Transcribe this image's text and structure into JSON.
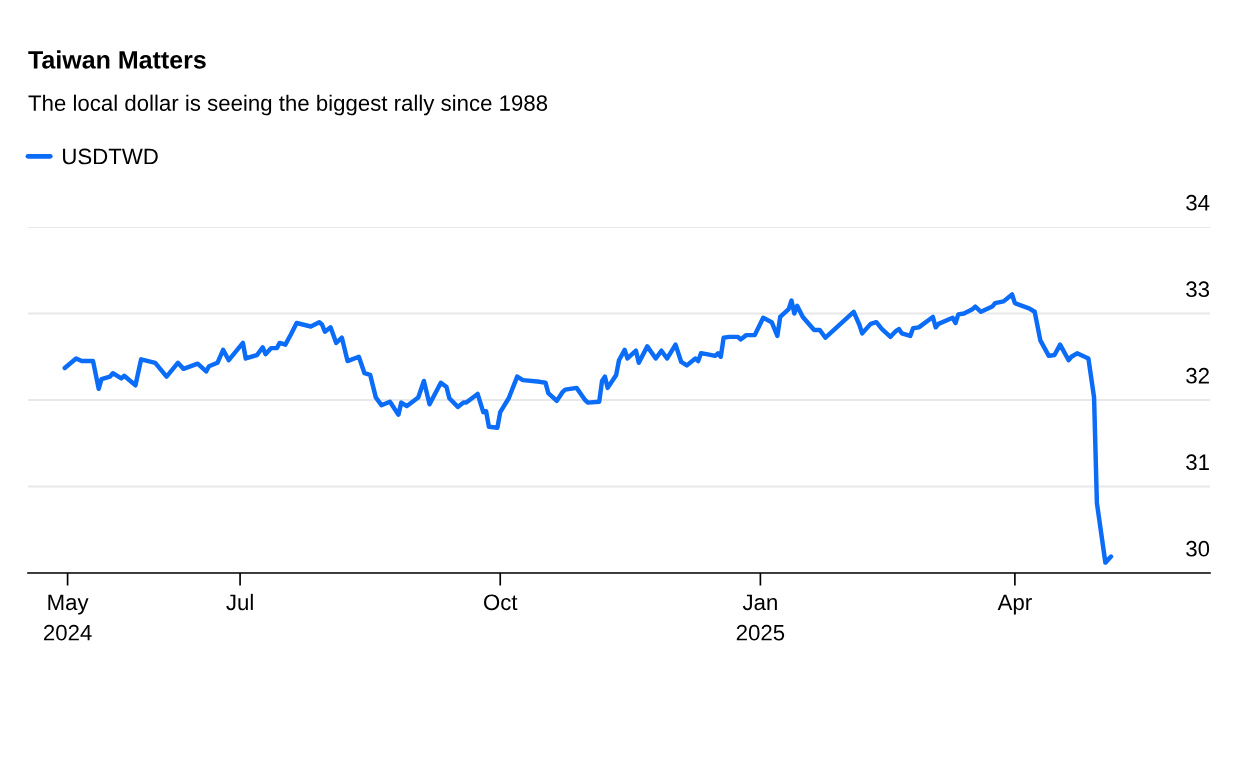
{
  "chart_data": {
    "type": "line",
    "title": "Taiwan Matters",
    "subtitle": "The local dollar is seeing the biggest rally since 1988",
    "x": [
      "2024-04-30",
      "2024-05-04",
      "2024-05-06",
      "2024-05-10",
      "2024-05-12",
      "2024-05-13",
      "2024-05-16",
      "2024-05-17",
      "2024-05-20",
      "2024-05-21",
      "2024-05-25",
      "2024-05-27",
      "2024-06-01",
      "2024-06-05",
      "2024-06-09",
      "2024-06-11",
      "2024-06-16",
      "2024-06-19",
      "2024-06-20",
      "2024-06-23",
      "2024-06-25",
      "2024-06-27",
      "2024-07-02",
      "2024-07-03",
      "2024-07-07",
      "2024-07-09",
      "2024-07-10",
      "2024-07-12",
      "2024-07-14",
      "2024-07-15",
      "2024-07-17",
      "2024-07-19",
      "2024-07-21",
      "2024-07-26",
      "2024-07-29",
      "2024-07-30",
      "2024-07-31",
      "2024-08-02",
      "2024-08-04",
      "2024-08-06",
      "2024-08-08",
      "2024-08-12",
      "2024-08-14",
      "2024-08-16",
      "2024-08-18",
      "2024-08-20",
      "2024-08-23",
      "2024-08-26",
      "2024-08-27",
      "2024-08-29",
      "2024-09-02",
      "2024-09-04",
      "2024-09-06",
      "2024-09-10",
      "2024-09-12",
      "2024-09-13",
      "2024-09-16",
      "2024-09-18",
      "2024-09-19",
      "2024-09-23",
      "2024-09-25",
      "2024-09-26",
      "2024-09-27",
      "2024-09-30",
      "2024-10-01",
      "2024-10-04",
      "2024-10-07",
      "2024-10-09",
      "2024-10-15",
      "2024-10-17",
      "2024-10-18",
      "2024-10-21",
      "2024-10-23",
      "2024-10-24",
      "2024-10-28",
      "2024-10-31",
      "2024-11-01",
      "2024-11-05",
      "2024-11-06",
      "2024-11-07",
      "2024-11-08",
      "2024-11-11",
      "2024-11-12",
      "2024-11-14",
      "2024-11-15",
      "2024-11-18",
      "2024-11-19",
      "2024-11-22",
      "2024-11-25",
      "2024-11-27",
      "2024-11-29",
      "2024-12-02",
      "2024-12-04",
      "2024-12-06",
      "2024-12-09",
      "2024-12-10",
      "2024-12-11",
      "2024-12-13",
      "2024-12-16",
      "2024-12-17",
      "2024-12-18",
      "2024-12-19",
      "2024-12-21",
      "2024-12-24",
      "2024-12-25",
      "2024-12-27",
      "2024-12-30",
      "2025-01-02",
      "2025-01-05",
      "2025-01-07",
      "2025-01-08",
      "2025-01-11",
      "2025-01-12",
      "2025-01-13",
      "2025-01-14",
      "2025-01-16",
      "2025-01-20",
      "2025-01-22",
      "2025-01-24",
      "2025-02-03",
      "2025-02-05",
      "2025-02-06",
      "2025-02-09",
      "2025-02-11",
      "2025-02-13",
      "2025-02-16",
      "2025-02-18",
      "2025-02-19",
      "2025-02-20",
      "2025-02-23",
      "2025-02-24",
      "2025-02-26",
      "2025-03-03",
      "2025-03-04",
      "2025-03-05",
      "2025-03-10",
      "2025-03-11",
      "2025-03-12",
      "2025-03-14",
      "2025-03-17",
      "2025-03-18",
      "2025-03-20",
      "2025-03-24",
      "2025-03-25",
      "2025-03-28",
      "2025-03-31",
      "2025-04-01",
      "2025-04-06",
      "2025-04-08",
      "2025-04-10",
      "2025-04-13",
      "2025-04-15",
      "2025-04-17",
      "2025-04-20",
      "2025-04-21",
      "2025-04-23",
      "2025-04-27",
      "2025-04-29",
      "2025-04-30",
      "2025-05-03",
      "2025-05-05"
    ],
    "series": [
      {
        "name": "USDTWD",
        "color": "#0b6cf7",
        "values": [
          32.37,
          32.48,
          32.45,
          32.45,
          32.13,
          32.24,
          32.27,
          32.31,
          32.25,
          32.28,
          32.17,
          32.47,
          32.43,
          32.27,
          32.43,
          32.36,
          32.42,
          32.33,
          32.39,
          32.43,
          32.58,
          32.46,
          32.66,
          32.48,
          32.52,
          32.61,
          32.53,
          32.6,
          32.6,
          32.66,
          32.64,
          32.76,
          32.89,
          32.85,
          32.9,
          32.87,
          32.79,
          32.84,
          32.66,
          32.72,
          32.45,
          32.5,
          32.31,
          32.29,
          32.03,
          31.94,
          31.98,
          31.83,
          31.97,
          31.93,
          32.03,
          32.22,
          31.95,
          32.2,
          32.15,
          32.02,
          31.92,
          31.97,
          31.97,
          32.07,
          31.86,
          31.87,
          31.69,
          31.68,
          31.86,
          32.02,
          32.27,
          32.23,
          32.21,
          32.2,
          32.08,
          31.99,
          32.09,
          32.12,
          32.14,
          32.0,
          31.97,
          31.98,
          32.22,
          32.27,
          32.14,
          32.29,
          32.46,
          32.58,
          32.48,
          32.57,
          32.43,
          32.62,
          32.48,
          32.57,
          32.48,
          32.64,
          32.44,
          32.4,
          32.48,
          32.45,
          32.54,
          32.53,
          32.51,
          32.54,
          32.5,
          32.72,
          32.73,
          32.73,
          32.7,
          32.75,
          32.75,
          32.95,
          32.9,
          32.74,
          32.96,
          33.05,
          33.15,
          33.0,
          33.09,
          32.96,
          32.81,
          32.81,
          32.72,
          33.02,
          32.87,
          32.77,
          32.88,
          32.9,
          32.82,
          32.73,
          32.8,
          32.82,
          32.77,
          32.74,
          32.83,
          32.84,
          32.96,
          32.84,
          32.88,
          32.95,
          32.89,
          32.99,
          33.0,
          33.05,
          33.08,
          33.02,
          33.08,
          33.12,
          33.14,
          33.22,
          33.12,
          33.06,
          33.02,
          32.69,
          32.51,
          32.52,
          32.64,
          32.46,
          32.5,
          32.54,
          32.48,
          32.03,
          30.81,
          30.12,
          30.19
        ]
      }
    ],
    "xlim": [
      "2024-04-17",
      "2025-06-09"
    ],
    "xticks": [
      {
        "value": "2024-05-01",
        "label": "May\n2024"
      },
      {
        "value": "2024-07-01",
        "label": "Jul"
      },
      {
        "value": "2024-10-01",
        "label": "Oct"
      },
      {
        "value": "2025-01-01",
        "label": "Jan\n2025"
      },
      {
        "value": "2025-04-01",
        "label": "Apr"
      }
    ],
    "ylim": [
      30,
      34
    ],
    "yticks": [
      30,
      31,
      32,
      33,
      34
    ],
    "grid": "y",
    "legend": "top left",
    "line_style": "solid",
    "marker": "none"
  }
}
